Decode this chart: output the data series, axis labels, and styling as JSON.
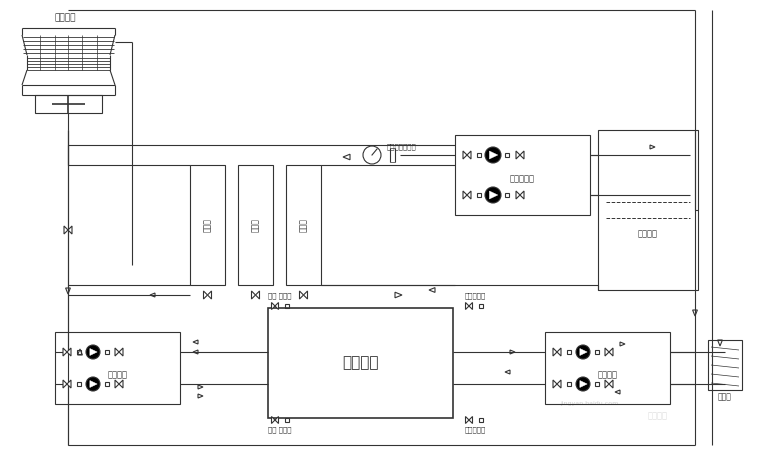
{
  "bg_color": "#ffffff",
  "line_color": "#333333",
  "fig_width": 7.75,
  "fig_height": 4.5,
  "dpi": 100,
  "labels": {
    "cooling_tower": "冷却水塔",
    "production_line": "生产线",
    "pressure_pump": "压力输送泵",
    "pressure_meter": "压力表、温度计",
    "cold_water_tank": "冷冻水箱",
    "chiller_unit": "冷冻机组",
    "cooling_pump": "冷却水泵",
    "chilled_pump": "冷冻水筒",
    "filter": "过滤器",
    "valve_label": "阀阀",
    "flex_label": "软接头",
    "flex_valve": "软接头阀阀"
  }
}
